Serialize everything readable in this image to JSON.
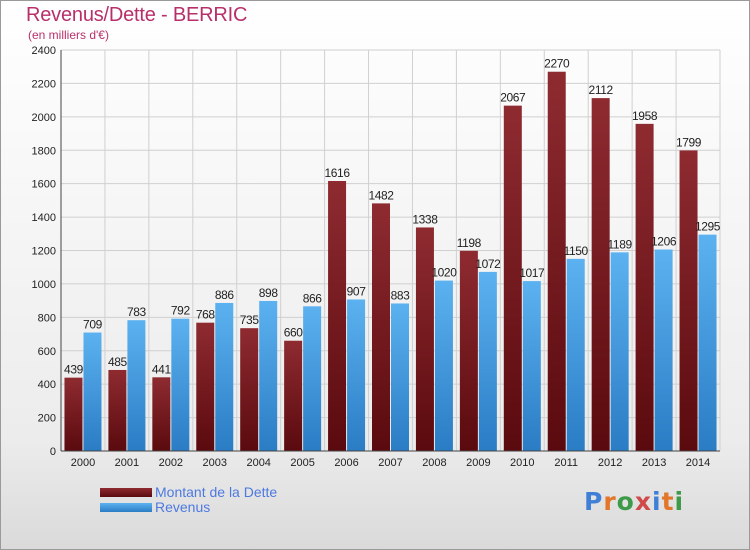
{
  "title": "Revenus/Dette - BERRIC",
  "subtitle": "(en milliers d'€)",
  "logo": {
    "text": "Proxiti",
    "colors": [
      "#3f7fd6",
      "#e2762a",
      "#3c9a48",
      "#d04a4a",
      "#3f7fd6",
      "#e2762a",
      "#3c9a48"
    ]
  },
  "chart_data": {
    "type": "bar",
    "categories": [
      "2000",
      "2001",
      "2002",
      "2003",
      "2004",
      "2005",
      "2006",
      "2007",
      "2008",
      "2009",
      "2010",
      "2011",
      "2012",
      "2013",
      "2014"
    ],
    "series": [
      {
        "name": "Montant de la Dette",
        "color": "#7a1f24",
        "values": [
          439,
          485,
          441,
          768,
          735,
          660,
          1616,
          1482,
          1338,
          1198,
          2067,
          2270,
          2112,
          1958,
          1799
        ]
      },
      {
        "name": "Revenus",
        "color": "#4aa3e8",
        "values": [
          709,
          783,
          792,
          886,
          898,
          866,
          907,
          883,
          1020,
          1072,
          1017,
          1150,
          1189,
          1206,
          1295
        ]
      }
    ],
    "yticks": [
      0,
      200,
      400,
      600,
      800,
      1000,
      1200,
      1400,
      1600,
      1800,
      2000,
      2200,
      2400
    ],
    "ylim": [
      0,
      2400
    ],
    "grid": true,
    "legend_position": "bottom-left"
  }
}
